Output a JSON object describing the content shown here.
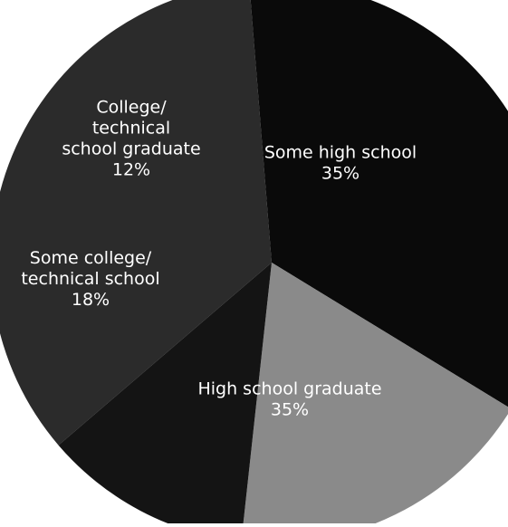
{
  "chart_data": {
    "type": "pie",
    "title": "",
    "slices": [
      {
        "label_lines": [
          "Some high school"
        ],
        "value": 35,
        "value_label": "35%",
        "color": "#2b2b2b"
      },
      {
        "label_lines": [
          "High school graduate"
        ],
        "value": 35,
        "value_label": "35%",
        "color": "#0a0a0a"
      },
      {
        "label_lines": [
          "Some college/",
          "technical school"
        ],
        "value": 18,
        "value_label": "18%",
        "color": "#8a8a8a"
      },
      {
        "label_lines": [
          "College/",
          "technical",
          "school graduate"
        ],
        "value": 12,
        "value_label": "12%",
        "color": "#141414"
      }
    ]
  }
}
